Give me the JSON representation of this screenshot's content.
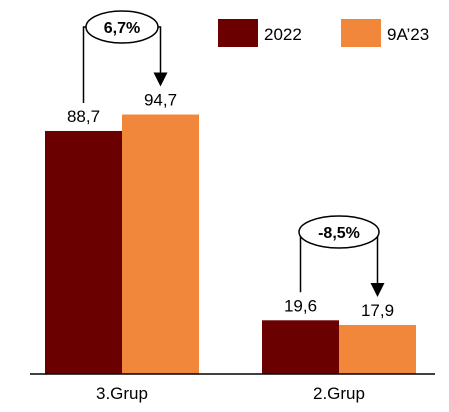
{
  "chart_data": {
    "type": "bar",
    "categories": [
      "3.Grup",
      "2.Grup"
    ],
    "series": [
      {
        "name": "2022",
        "values": [
          88.7,
          19.6
        ],
        "labels": [
          "88,7",
          "19,6"
        ],
        "color": "#6b0000"
      },
      {
        "name": "9A’23",
        "values": [
          94.7,
          17.9
        ],
        "labels": [
          "94,7",
          "17,9"
        ],
        "color": "#f0873a"
      }
    ],
    "annotations": [
      {
        "category": "3.Grup",
        "text": "6,7%"
      },
      {
        "category": "2.Grup",
        "text": "-8,5%"
      }
    ],
    "ylim": [
      0,
      100
    ],
    "grid": false,
    "legend": "top-right"
  }
}
